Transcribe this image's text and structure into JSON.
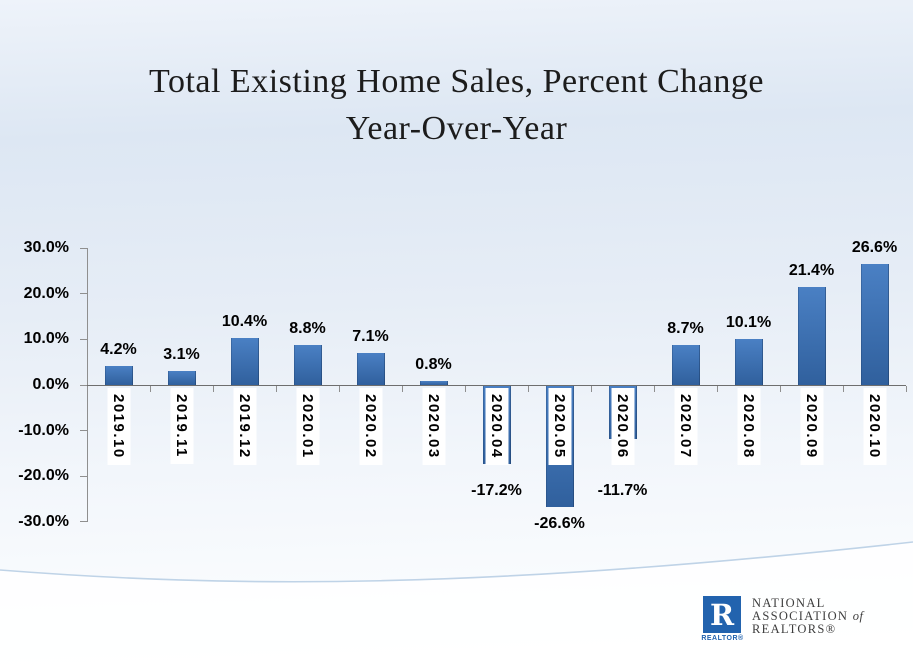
{
  "slide": {
    "title_line1": "Total Existing Home Sales, Percent Change",
    "title_line2": "Year-Over-Year"
  },
  "chart_data": {
    "type": "bar",
    "title": "Total Existing Home Sales, Percent Change Year-Over-Year",
    "categories": [
      "2019.10",
      "2019.11",
      "2019.12",
      "2020.01",
      "2020.02",
      "2020.03",
      "2020.04",
      "2020.05",
      "2020.06",
      "2020.07",
      "2020.08",
      "2020.09",
      "2020.10"
    ],
    "values": [
      4.2,
      3.1,
      10.4,
      8.8,
      7.1,
      0.8,
      -17.2,
      -26.6,
      -11.7,
      8.7,
      10.1,
      21.4,
      26.6
    ],
    "value_labels": [
      "4.2%",
      "3.1%",
      "10.4%",
      "8.8%",
      "7.1%",
      "0.8%",
      "-17.2%",
      "-26.6%",
      "-11.7%",
      "8.7%",
      "10.1%",
      "21.4%",
      "26.6%"
    ],
    "xlabel": "",
    "ylabel": "",
    "y_axis": {
      "tick_labels": [
        "30.0%",
        "20.0%",
        "10.0%",
        "0.0%",
        "-10.0%",
        "-20.0%",
        "-30.0%"
      ],
      "tick_values": [
        30,
        20,
        10,
        0,
        -10,
        -20,
        -30
      ],
      "ylim": [
        -30,
        30
      ]
    },
    "grid": false,
    "legend": false,
    "bar_gradient_top": "#4a80c4",
    "bar_gradient_bottom": "#30609d",
    "axis_color": "#8f8f8f",
    "label_background": "#ffffff"
  },
  "logo": {
    "r_letter": "R",
    "realtor_label": "REALTOR®",
    "line1": "NATIONAL",
    "line2": "ASSOCIATION",
    "line2_of": "of",
    "line3": "REALTORS®",
    "brand_blue": "#2263ae",
    "text_color": "#3d3d3d"
  }
}
